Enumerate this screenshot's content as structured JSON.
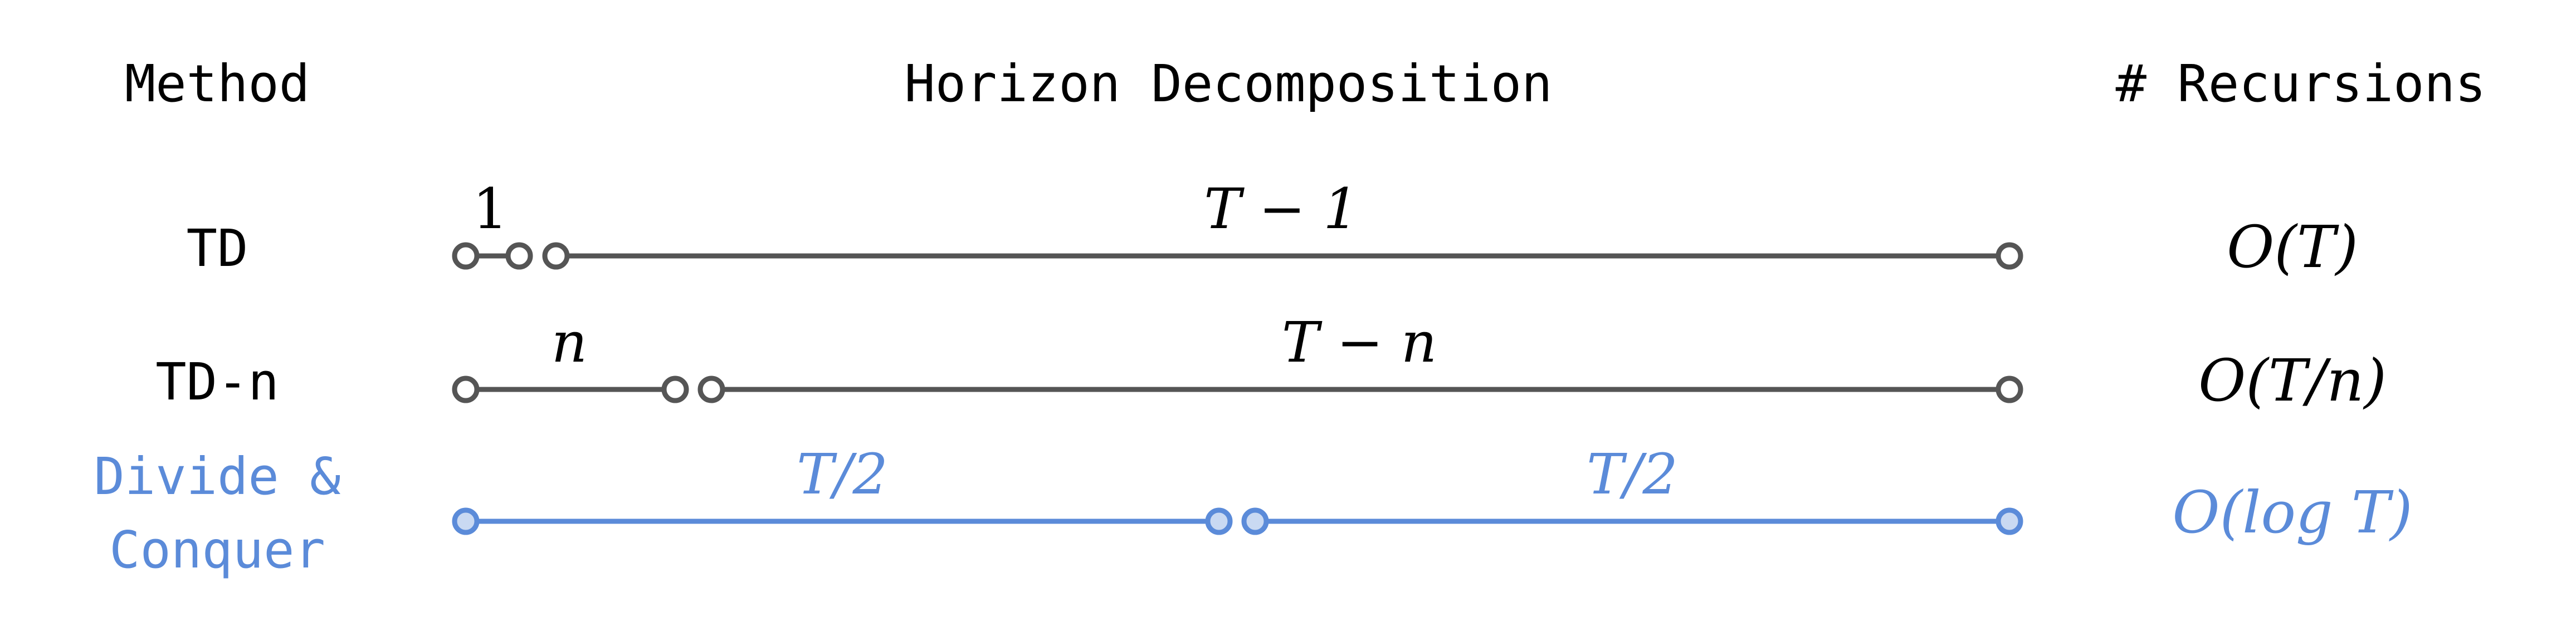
{
  "headers": {
    "method": "Method",
    "horizon": "Horizon Decomposition",
    "recursions": "# Recursions"
  },
  "colors": {
    "dark": "#555555",
    "text": "#000000",
    "blue": "#5b8bd9",
    "blue_fill": "#c9d9f2"
  },
  "rows": [
    {
      "method_lines": [
        "TD"
      ],
      "segment_labels": [
        "1",
        "T − 1"
      ],
      "complexity": "O(T)"
    },
    {
      "method_lines": [
        "TD-n"
      ],
      "segment_labels": [
        "n",
        "T − n"
      ],
      "complexity": "O(T/n)"
    },
    {
      "method_lines": [
        "Divide &",
        "Conquer"
      ],
      "segment_labels": [
        "T/2",
        "T/2"
      ],
      "complexity": "O(log T)"
    }
  ]
}
